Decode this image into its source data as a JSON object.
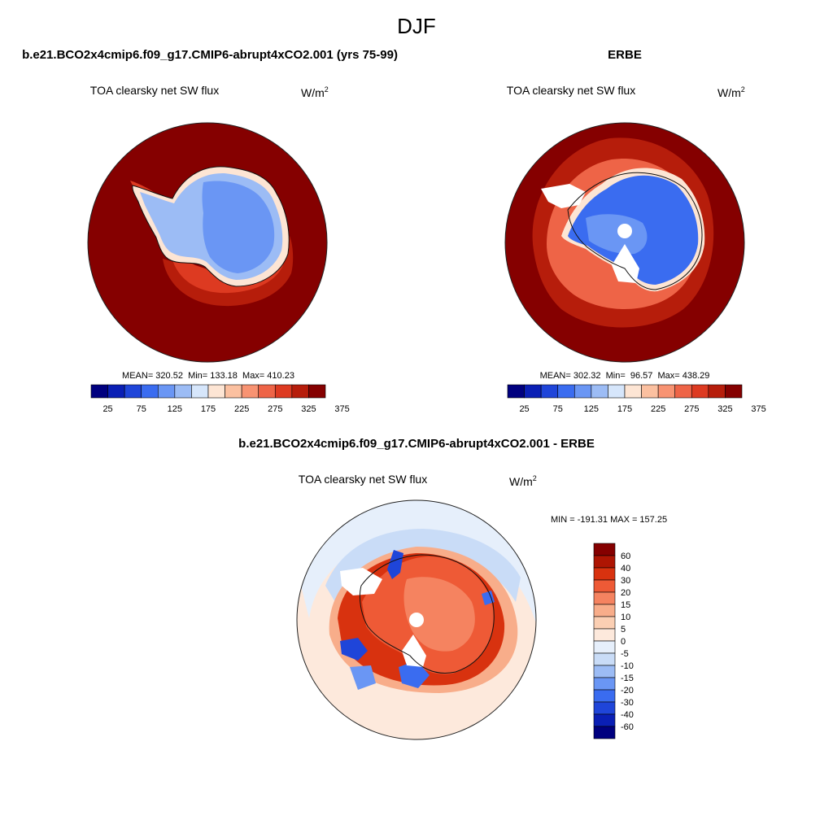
{
  "page_title": "DJF",
  "colors": {
    "land_fill": "#ffffff",
    "coast": "#111111",
    "abs_palette": [
      "#00007f",
      "#0a1fb5",
      "#1f45d9",
      "#3a6cf0",
      "#6a96f4",
      "#9cbcf5",
      "#d6e6fb",
      "#fde5d4",
      "#fbc0a0",
      "#f89372",
      "#ee6447",
      "#dd3a21",
      "#b61d0b",
      "#850000"
    ],
    "diff_palette": [
      "#00007f",
      "#0a1fb5",
      "#1f45d9",
      "#3a6cf0",
      "#6a96f4",
      "#9cbcf5",
      "#c9dcf7",
      "#e6effb",
      "#fde9dc",
      "#fbcfb3",
      "#f8ad8a",
      "#f58360",
      "#ee5a36",
      "#d8320f",
      "#ae1503",
      "#850000"
    ]
  },
  "chart_data": [
    {
      "type": "heatmap",
      "projection": "south-polar-stereographic",
      "title": "b.e21.BCO2x4cmip6.f09_g17.CMIP6-abrupt4xCO2.001 (yrs 75-99)",
      "variable_label": "TOA clearsky net SW flux",
      "units_main": "W/m",
      "units_sup": "2",
      "stats_text": "MEAN= 320.52  Min= 133.18  Max= 410.23",
      "stats": {
        "mean": 320.52,
        "min": 133.18,
        "max": 410.23
      },
      "contour_levels": [
        25,
        50,
        75,
        100,
        125,
        150,
        175,
        200,
        225,
        250,
        275,
        300,
        325,
        350,
        375
      ],
      "colorbar_tick_labels": [
        "25",
        "75",
        "125",
        "175",
        "225",
        "275",
        "325",
        "375"
      ],
      "colorbar_orientation": "horizontal"
    },
    {
      "type": "heatmap",
      "projection": "south-polar-stereographic",
      "title": "ERBE",
      "variable_label": "TOA clearsky net SW flux",
      "units_main": "W/m",
      "units_sup": "2",
      "stats_text": "MEAN= 302.32  Min=  96.57  Max= 438.29",
      "stats": {
        "mean": 302.32,
        "min": 96.57,
        "max": 438.29
      },
      "contour_levels": [
        25,
        50,
        75,
        100,
        125,
        150,
        175,
        200,
        225,
        250,
        275,
        300,
        325,
        350,
        375
      ],
      "colorbar_tick_labels": [
        "25",
        "75",
        "125",
        "175",
        "225",
        "275",
        "325",
        "375"
      ],
      "colorbar_orientation": "horizontal"
    },
    {
      "type": "heatmap",
      "projection": "south-polar-stereographic",
      "title": "b.e21.BCO2x4cmip6.f09_g17.CMIP6-abrupt4xCO2.001 - ERBE",
      "variable_label": "TOA clearsky net SW flux",
      "units_main": "W/m",
      "units_sup": "2",
      "stats_text": "MIN = -191.31 MAX = 157.25",
      "stats": {
        "min": -191.31,
        "max": 157.25
      },
      "contour_levels": [
        -60,
        -40,
        -30,
        -20,
        -15,
        -10,
        -5,
        0,
        5,
        10,
        15,
        20,
        30,
        40,
        60
      ],
      "colorbar_tick_labels": [
        "60",
        "40",
        "30",
        "20",
        "15",
        "10",
        "5",
        "0",
        "-5",
        "-10",
        "-15",
        "-20",
        "-30",
        "-40",
        "-60"
      ],
      "colorbar_orientation": "vertical"
    }
  ]
}
